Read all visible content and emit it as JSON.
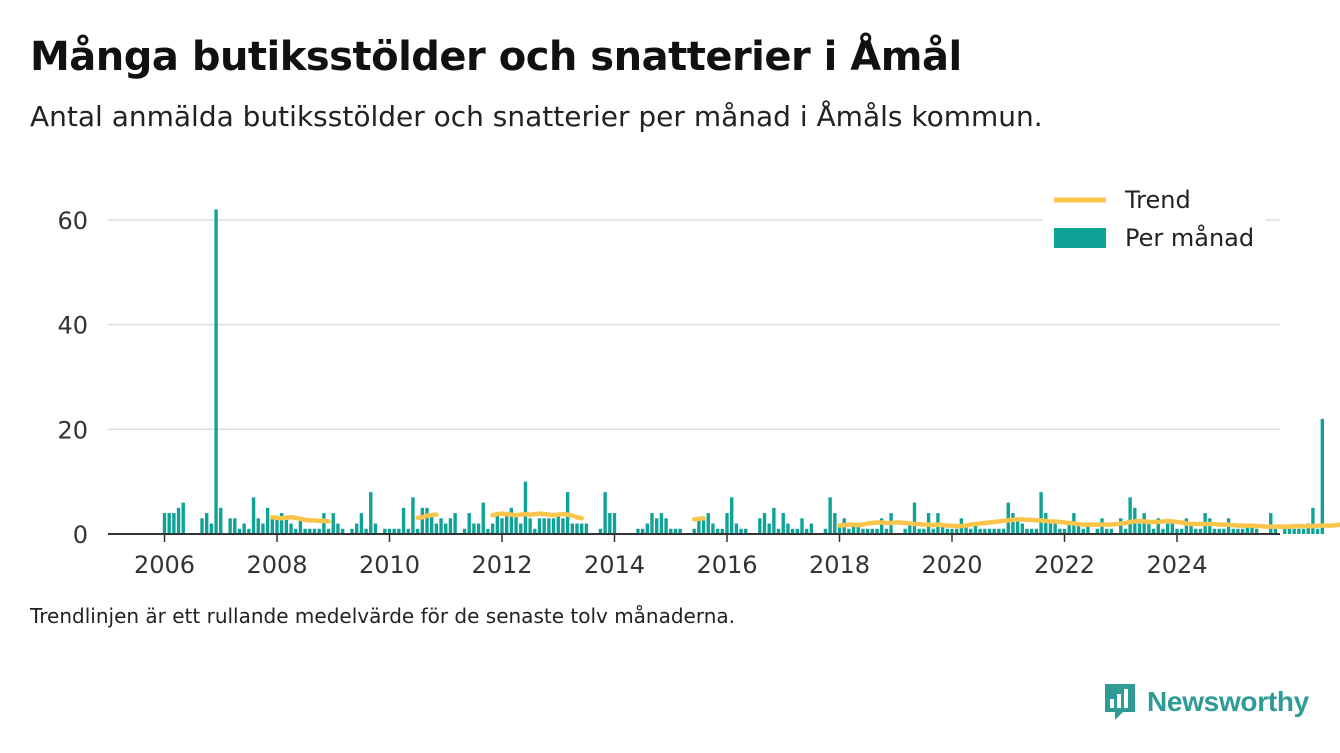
{
  "header": {
    "title": "Många butiksstölder och snatterier i Åmål",
    "subtitle": "Antal anmälda butiksstölder och snatterier per månad i Åmåls kommun."
  },
  "footnote": "Trendlinjen är ett rullande medelvärde för de senaste tolv månaderna.",
  "brand": {
    "name": "Newsworthy",
    "color": "#2e9b95"
  },
  "colors": {
    "bars": "#0fa397",
    "trend": "#fbc54b",
    "grid": "#dddddd",
    "axis": "#333333"
  },
  "chart_data": {
    "type": "bar",
    "title": "Många butiksstölder och snatterier i Åmål",
    "ylim": [
      0,
      65
    ],
    "y_ticks": [
      0,
      20,
      40,
      60
    ],
    "x_ticks": [
      "2006",
      "2008",
      "2010",
      "2012",
      "2014",
      "2016",
      "2018",
      "2020",
      "2022",
      "2024"
    ],
    "grid": true,
    "legend_position": "top-right",
    "start_month": "2006-01",
    "series": [
      {
        "name": "Per månad",
        "type": "bar",
        "values": [
          4,
          4,
          4,
          5,
          6,
          0,
          0,
          0,
          3,
          4,
          2,
          62,
          5,
          0,
          3,
          3,
          1,
          2,
          1,
          7,
          3,
          2,
          5,
          3,
          3,
          4,
          3,
          2,
          1,
          3,
          1,
          1,
          1,
          1,
          4,
          1,
          4,
          2,
          1,
          0,
          1,
          2,
          4,
          1,
          8,
          2,
          0,
          1,
          1,
          1,
          1,
          5,
          1,
          7,
          1,
          5,
          5,
          4,
          2,
          3,
          2,
          3,
          4,
          0,
          1,
          4,
          2,
          2,
          6,
          1,
          2,
          4,
          3,
          4,
          5,
          4,
          2,
          10,
          3,
          1,
          3,
          3,
          3,
          3,
          4,
          3,
          8,
          2,
          2,
          2,
          2,
          0,
          0,
          1,
          8,
          4,
          4,
          0,
          0,
          0,
          0,
          1,
          1,
          2,
          4,
          3,
          4,
          3,
          1,
          1,
          1,
          0,
          0,
          1,
          3,
          3,
          4,
          2,
          1,
          1,
          4,
          7,
          2,
          1,
          1,
          0,
          0,
          3,
          4,
          2,
          5,
          1,
          4,
          2,
          1,
          1,
          3,
          1,
          2,
          0,
          0,
          1,
          7,
          4,
          2,
          3,
          1,
          2,
          2,
          1,
          1,
          1,
          1,
          3,
          1,
          4,
          0,
          0,
          1,
          2,
          6,
          1,
          1,
          4,
          1,
          4,
          2,
          1,
          1,
          1,
          3,
          2,
          1,
          2,
          1,
          1,
          1,
          1,
          1,
          1,
          6,
          4,
          3,
          2,
          1,
          1,
          1,
          8,
          4,
          2,
          2,
          1,
          1,
          2,
          4,
          2,
          1,
          2,
          0,
          1,
          3,
          1,
          1,
          0,
          3,
          1,
          7,
          5,
          2,
          4,
          2,
          1,
          3,
          1,
          2,
          2,
          1,
          1,
          3,
          2,
          1,
          1,
          4,
          3,
          1,
          1,
          1,
          3,
          1,
          1,
          1,
          2,
          2,
          1,
          0,
          0,
          4,
          1,
          0,
          1,
          1,
          1,
          1,
          1,
          2,
          5,
          1,
          22
        ]
      },
      {
        "name": "Trend",
        "type": "line",
        "segments": [
          {
            "start_month": "2007-12",
            "values": [
              3.2,
              3.1,
              3.0,
              3.1,
              3.2,
              3.1,
              2.9,
              2.7,
              2.6,
              2.6,
              2.5,
              2.5,
              2.4
            ]
          },
          {
            "start_month": "2010-07",
            "values": [
              3.1,
              3.2,
              3.5,
              3.6,
              3.7
            ]
          },
          {
            "start_month": "2011-11",
            "values": [
              3.6,
              3.8,
              3.9,
              3.8,
              3.7,
              3.6,
              3.7,
              3.8,
              3.7,
              3.8,
              3.9,
              3.8,
              3.7,
              3.6,
              3.7,
              3.8,
              3.7,
              3.5,
              3.2,
              3.0
            ]
          },
          {
            "start_month": "2015-06",
            "values": [
              2.8,
              2.9,
              3.0
            ]
          },
          {
            "start_month": "2018-01",
            "values": [
              1.6,
              1.7,
              1.8,
              1.8,
              1.7,
              1.8,
              2.0,
              2.1,
              2.2,
              2.2,
              2.1,
              2.1,
              2.2,
              2.2,
              2.1,
              2.0,
              1.9,
              1.9,
              1.8,
              1.8,
              1.7,
              1.8,
              1.7,
              1.6,
              1.6,
              1.5,
              1.5,
              1.6,
              1.8,
              1.9,
              2.0,
              2.1,
              2.2,
              2.3,
              2.4,
              2.5,
              2.6,
              2.7,
              2.8,
              2.8,
              2.7,
              2.7,
              2.6,
              2.6,
              2.5,
              2.4,
              2.4,
              2.3,
              2.2,
              2.1,
              2.0,
              1.9,
              1.8,
              1.8,
              1.8,
              1.8,
              1.8,
              1.8,
              1.8,
              1.9,
              2.0,
              2.1,
              2.3,
              2.4,
              2.5,
              2.4,
              2.3,
              2.3,
              2.3,
              2.4,
              2.5,
              2.4,
              2.3,
              2.2,
              2.0,
              1.9,
              1.9,
              1.9,
              1.9,
              1.9,
              1.9,
              1.8,
              1.8,
              1.8,
              1.7,
              1.6,
              1.6,
              1.6,
              1.6,
              1.5,
              1.5,
              1.4,
              1.4,
              1.4,
              1.4,
              1.4,
              1.4,
              1.5,
              1.5,
              1.5,
              1.5,
              1.5,
              1.6,
              1.6,
              1.6,
              1.6,
              1.7,
              1.8,
              1.8,
              2.0,
              3.5
            ]
          }
        ]
      }
    ]
  }
}
